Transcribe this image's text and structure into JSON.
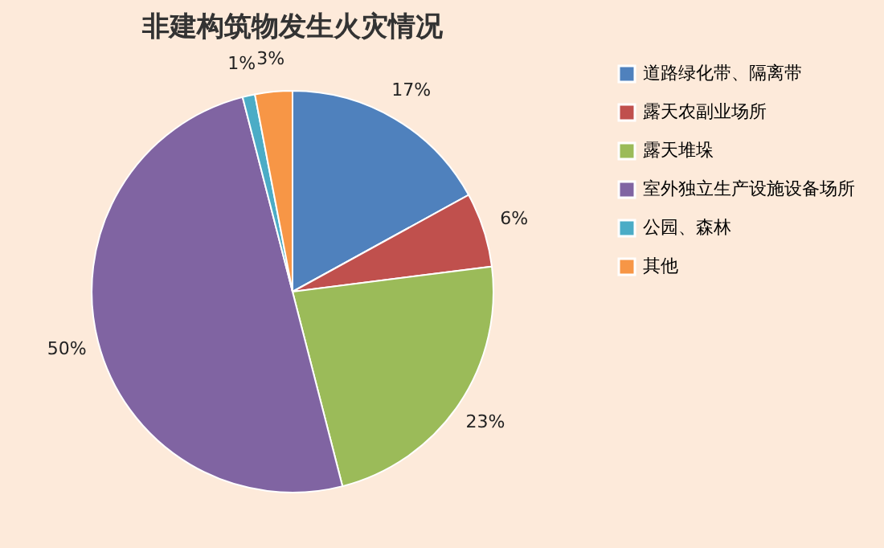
{
  "chart_data": {
    "type": "pie",
    "title": "非建构筑物发生火灾情况",
    "categories": [
      "道路绿化带、隔离带",
      "露天农副业场所",
      "露天堆垛",
      "室外独立生产设施设备场所",
      "公园、森林",
      "其他"
    ],
    "values": [
      17,
      6,
      23,
      50,
      1,
      3
    ],
    "value_labels": [
      "17%",
      "6%",
      "23%",
      "50%",
      "1%",
      "3%"
    ],
    "colors": [
      "#4f81bd",
      "#c0504d",
      "#9bbb59",
      "#8064a2",
      "#4bacc6",
      "#f79646"
    ],
    "legend": "right"
  }
}
